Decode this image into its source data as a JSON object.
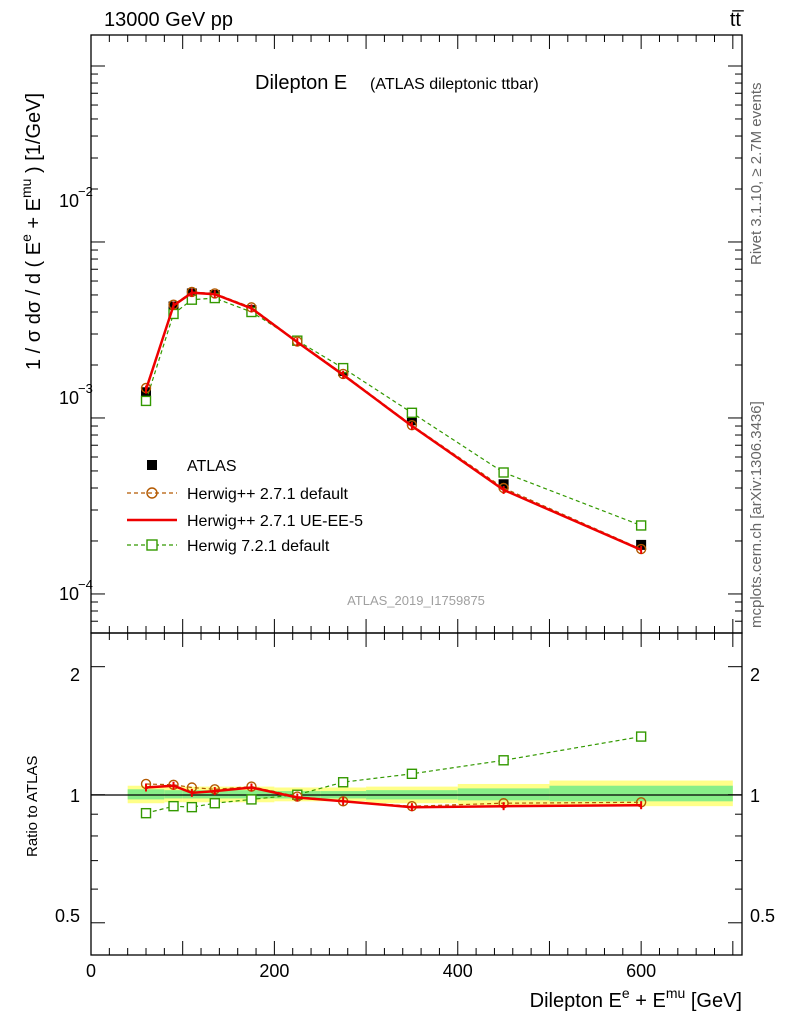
{
  "header": {
    "left": "13000 GeV pp",
    "right": "tt̅"
  },
  "side_labels": {
    "rivet": "Rivet 3.1.10, ≥ 2.7M events",
    "mcplots": "mcplots.cern.ch [arXiv:1306.3436]"
  },
  "watermark": "ATLAS_2019_I1759875",
  "chart_data": [
    {
      "type": "line",
      "title": "Dilepton E",
      "subtitle": "(ATLAS dileptonic ttbar)",
      "ylabel": "1 / σ  dσ / d ( E^e + E^mu ) [1/GeV]",
      "ylabel_parts": {
        "a": "1 / σ  dσ / d ( E",
        "e": "e",
        "b": " + E",
        "mu": "mu",
        "c": " ) [1/GeV]"
      },
      "yscale": "log",
      "ylim": [
        6e-05,
        0.15
      ],
      "xlim": [
        0,
        710
      ],
      "ytick_labels": [
        {
          "base": "10",
          "exp": "−2",
          "value": 0.01
        },
        {
          "base": "10",
          "exp": "−3",
          "value": 0.001
        },
        {
          "base": "10",
          "exp": "−4",
          "value": 0.0001
        }
      ],
      "legend_position": "lower-left",
      "x": [
        60,
        90,
        110,
        135,
        175,
        225,
        275,
        350,
        450,
        600
      ],
      "series": [
        {
          "name": "ATLAS",
          "style": "data",
          "color": "#000000",
          "values": [
            0.0014,
            0.0043,
            0.0051,
            0.005,
            0.0041,
            0.00275,
            0.00185,
            0.00097,
            0.00042,
            0.00019
          ]
        },
        {
          "name": "Herwig++ 2.7.1 default",
          "style": "circle-dashed",
          "color": "#b35900",
          "values": [
            0.00148,
            0.0044,
            0.0052,
            0.0051,
            0.00425,
            0.00272,
            0.00178,
            0.00091,
            0.0004,
            0.00018
          ]
        },
        {
          "name": "Herwig++ 2.7.1 UE-EE-5",
          "style": "solid",
          "color": "#ee0000",
          "values": [
            0.00145,
            0.00435,
            0.00515,
            0.00505,
            0.0042,
            0.0027,
            0.00176,
            0.0009,
            0.00039,
            0.000178
          ]
        },
        {
          "name": "Herwig 7.2.1 default",
          "style": "square-dashed",
          "color": "#339900",
          "values": [
            0.00125,
            0.0039,
            0.0047,
            0.0048,
            0.004,
            0.00275,
            0.00192,
            0.00107,
            0.00049,
            0.000245
          ]
        }
      ]
    },
    {
      "type": "line",
      "ylabel": "Ratio to ATLAS",
      "xlabel": "Dilepton E^e + E^mu [GeV]",
      "xlabel_parts": {
        "a": "Dilepton E",
        "e": "e",
        "b": " + E",
        "mu": "mu",
        "c": " [GeV]"
      },
      "yscale": "log",
      "ylim": [
        0.42,
        2.4
      ],
      "xlim": [
        0,
        710
      ],
      "yticks": [
        0.5,
        1,
        2
      ],
      "ytick_labels": [
        "0.5",
        "1",
        "2"
      ],
      "xticks": [
        0,
        200,
        400,
        600
      ],
      "xtick_labels": [
        "0",
        "200",
        "400",
        "600"
      ],
      "x": [
        60,
        90,
        110,
        135,
        175,
        225,
        275,
        350,
        450,
        600
      ],
      "bands": [
        {
          "x0": 40,
          "x1": 80,
          "inner": [
            0.975,
            1.03
          ],
          "outer": [
            0.955,
            1.05
          ]
        },
        {
          "x0": 80,
          "x1": 100,
          "inner": [
            0.98,
            1.025
          ],
          "outer": [
            0.96,
            1.045
          ]
        },
        {
          "x0": 100,
          "x1": 120,
          "inner": [
            0.98,
            1.025
          ],
          "outer": [
            0.96,
            1.045
          ]
        },
        {
          "x0": 120,
          "x1": 150,
          "inner": [
            0.98,
            1.025
          ],
          "outer": [
            0.96,
            1.045
          ]
        },
        {
          "x0": 150,
          "x1": 200,
          "inner": [
            0.98,
            1.025
          ],
          "outer": [
            0.96,
            1.045
          ]
        },
        {
          "x0": 200,
          "x1": 250,
          "inner": [
            0.98,
            1.02
          ],
          "outer": [
            0.965,
            1.04
          ]
        },
        {
          "x0": 250,
          "x1": 300,
          "inner": [
            0.98,
            1.02
          ],
          "outer": [
            0.965,
            1.04
          ]
        },
        {
          "x0": 300,
          "x1": 400,
          "inner": [
            0.975,
            1.025
          ],
          "outer": [
            0.955,
            1.045
          ]
        },
        {
          "x0": 400,
          "x1": 500,
          "inner": [
            0.97,
            1.035
          ],
          "outer": [
            0.945,
            1.06
          ]
        },
        {
          "x0": 500,
          "x1": 700,
          "inner": [
            0.965,
            1.05
          ],
          "outer": [
            0.94,
            1.08
          ]
        }
      ],
      "series": [
        {
          "name": "Herwig++ 2.7.1 default",
          "style": "circle-dashed",
          "color": "#b35900",
          "values": [
            1.06,
            1.055,
            1.04,
            1.03,
            1.045,
            0.99,
            0.965,
            0.94,
            0.955,
            0.96
          ]
        },
        {
          "name": "Herwig++ 2.7.1 UE-EE-5",
          "style": "solid",
          "color": "#ee0000",
          "values": [
            1.04,
            1.05,
            1.01,
            1.02,
            1.04,
            0.985,
            0.965,
            0.935,
            0.94,
            0.945
          ]
        },
        {
          "name": "Herwig 7.2.1 default",
          "style": "square-dashed",
          "color": "#339900",
          "values": [
            0.905,
            0.94,
            0.935,
            0.955,
            0.975,
            1.0,
            1.07,
            1.12,
            1.205,
            1.37
          ]
        }
      ]
    }
  ]
}
